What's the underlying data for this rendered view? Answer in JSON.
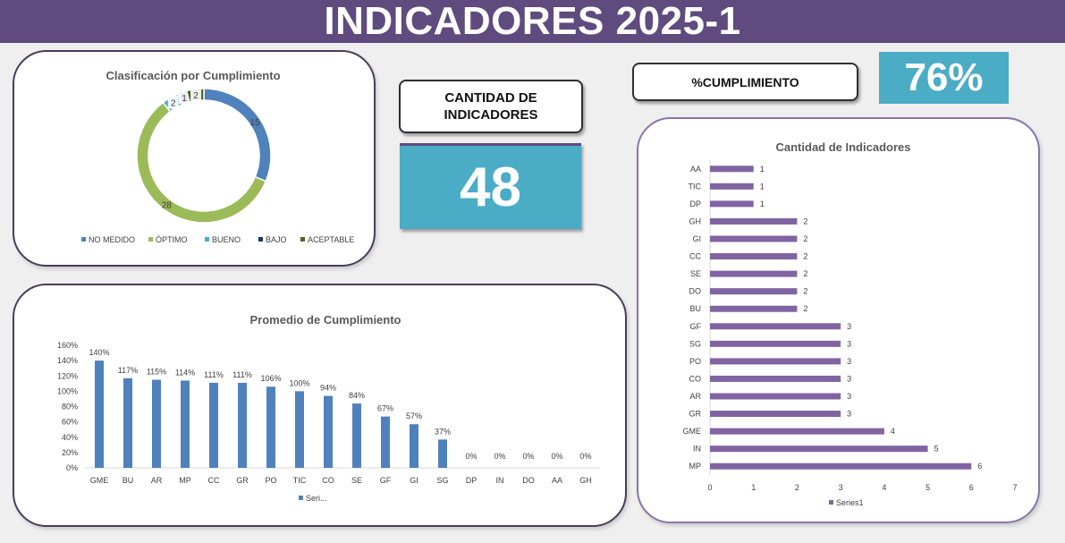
{
  "header": {
    "title": "INDICADORES 2025-1"
  },
  "kpis": {
    "cantidad_label": "CANTIDAD DE INDICADORES",
    "cantidad_value": "48",
    "cumplimiento_label": "%CUMPLIMIENTO",
    "cumplimiento_value": "76%"
  },
  "colors": {
    "header": "#5f4b7e",
    "kpi": "#4bacc6",
    "bar_blue": "#4f81bd",
    "bar_purple": "#8064a2"
  },
  "chart_data": [
    {
      "type": "pie",
      "title": "Clasificación por Cumplimiento",
      "categories": [
        "NO MEDIDO",
        "ÓPTIMO",
        "BUENO",
        "BAJO",
        "ACEPTABLE"
      ],
      "values": [
        15,
        28,
        2,
        1,
        2
      ],
      "colors": [
        "#4f81bd",
        "#9bbb59",
        "#4bacc6",
        "#1f3864",
        "#4f6228"
      ],
      "legend": "bottom"
    },
    {
      "type": "bar",
      "title": "Promedio de Cumplimiento",
      "categories": [
        "GME",
        "BU",
        "AR",
        "MP",
        "CC",
        "GR",
        "PO",
        "TIC",
        "CO",
        "SE",
        "GF",
        "GI",
        "SG",
        "DP",
        "IN",
        "DO",
        "AA",
        "GH"
      ],
      "values": [
        140,
        117,
        115,
        114,
        111,
        111,
        106,
        100,
        94,
        84,
        67,
        57,
        37,
        0,
        0,
        0,
        0,
        0
      ],
      "data_labels": [
        "140%",
        "117%",
        "115%",
        "114%",
        "111%",
        "111%",
        "106%",
        "100%",
        "94%",
        "84%",
        "67%",
        "57%",
        "37%",
        "0%",
        "0%",
        "0%",
        "0%",
        "0%"
      ],
      "yticks": [
        "0%",
        "20%",
        "40%",
        "60%",
        "80%",
        "100%",
        "120%",
        "140%",
        "160%"
      ],
      "ylim": [
        0,
        160
      ],
      "legend": "Seri...",
      "legend_position": "bottom"
    },
    {
      "type": "bar",
      "orientation": "horizontal",
      "title": "Cantidad de Indicadores",
      "categories": [
        "AA",
        "TIC",
        "DP",
        "GH",
        "GI",
        "CC",
        "SE",
        "DO",
        "BU",
        "GF",
        "SG",
        "PO",
        "CO",
        "AR",
        "GR",
        "GME",
        "IN",
        "MP"
      ],
      "values": [
        1,
        1,
        1,
        2,
        2,
        2,
        2,
        2,
        2,
        3,
        3,
        3,
        3,
        3,
        3,
        4,
        5,
        6
      ],
      "xticks": [
        "0",
        "1",
        "2",
        "3",
        "4",
        "5",
        "6",
        "7"
      ],
      "xlim": [
        0,
        7
      ],
      "legend": "Series1",
      "legend_position": "bottom"
    }
  ]
}
